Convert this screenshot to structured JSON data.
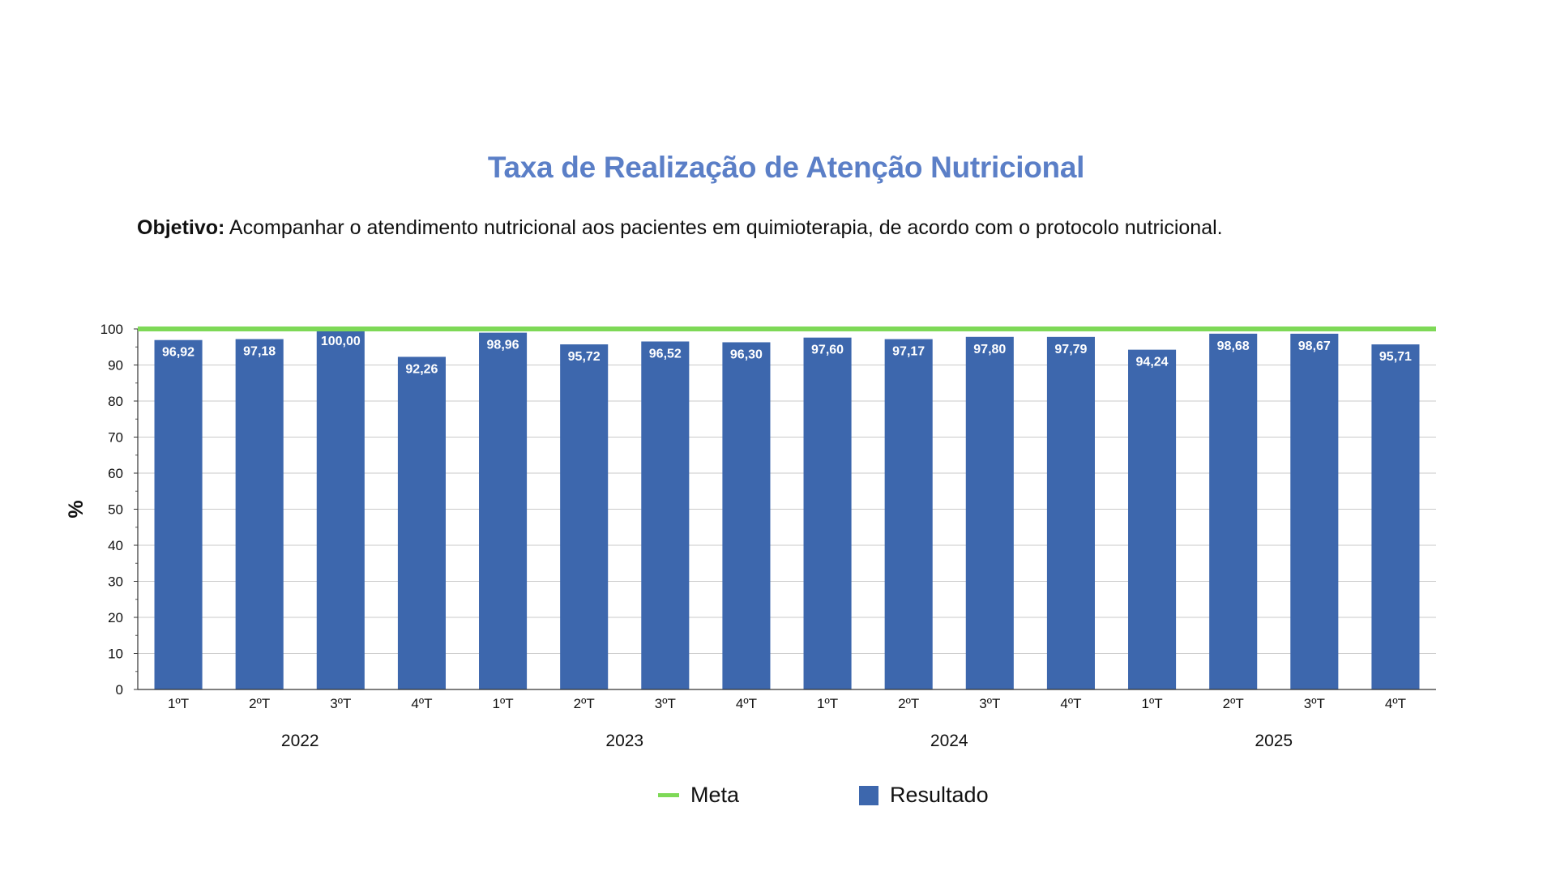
{
  "title": "Taxa de Realização de Atenção Nutricional",
  "objective": {
    "label": "Objetivo:",
    "text": " Acompanhar o atendimento nutricional aos pacientes em quimioterapia, de acordo com o protocolo nutricional."
  },
  "chart_data": {
    "type": "bar",
    "ylabel": "%",
    "ylim": [
      0,
      100
    ],
    "yticks": [
      0,
      10,
      20,
      30,
      40,
      50,
      60,
      70,
      80,
      90,
      100
    ],
    "grid": true,
    "categories": [
      "1ºT",
      "2ºT",
      "3ºT",
      "4ºT",
      "1ºT",
      "2ºT",
      "3ºT",
      "4ºT",
      "1ºT",
      "2ºT",
      "3ºT",
      "4ºT",
      "1ºT",
      "2ºT",
      "3ºT",
      "4ºT"
    ],
    "groups": [
      {
        "label": "2022",
        "count": 4
      },
      {
        "label": "2023",
        "count": 4
      },
      {
        "label": "2024",
        "count": 4
      },
      {
        "label": "2025",
        "count": 4
      }
    ],
    "series": [
      {
        "name": "Resultado",
        "type": "bar",
        "color": "#3d67ad",
        "values": [
          96.92,
          97.18,
          100.0,
          92.26,
          98.96,
          95.72,
          96.52,
          96.3,
          97.6,
          97.17,
          97.8,
          97.79,
          94.24,
          98.68,
          98.67,
          95.71
        ],
        "data_labels": [
          "96,92",
          "97,18",
          "100,00",
          "92,26",
          "98,96",
          "95,72",
          "96,52",
          "96,30",
          "97,60",
          "97,17",
          "97,80",
          "97,79",
          "94,24",
          "98,68",
          "98,67",
          "95,71"
        ]
      },
      {
        "name": "Meta",
        "type": "line",
        "color": "#7ed957",
        "value": 100
      }
    ],
    "legend": {
      "position": "bottom",
      "entries": [
        "Meta",
        "Resultado"
      ]
    }
  }
}
